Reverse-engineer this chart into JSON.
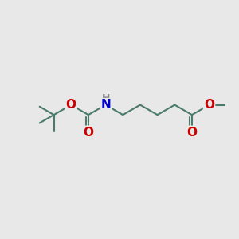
{
  "bg_color": "#e8e8e8",
  "bond_color": "#4a7a6a",
  "bond_width": 1.5,
  "atom_colors": {
    "O": "#cc0000",
    "N": "#0000cc",
    "H": "#888888",
    "C": "#4a7a6a"
  },
  "font_size_atom": 11,
  "font_size_h": 9,
  "fig_width": 3.0,
  "fig_height": 3.0,
  "dpi": 100,
  "xlim": [
    0,
    10
  ],
  "ylim": [
    0,
    10
  ]
}
